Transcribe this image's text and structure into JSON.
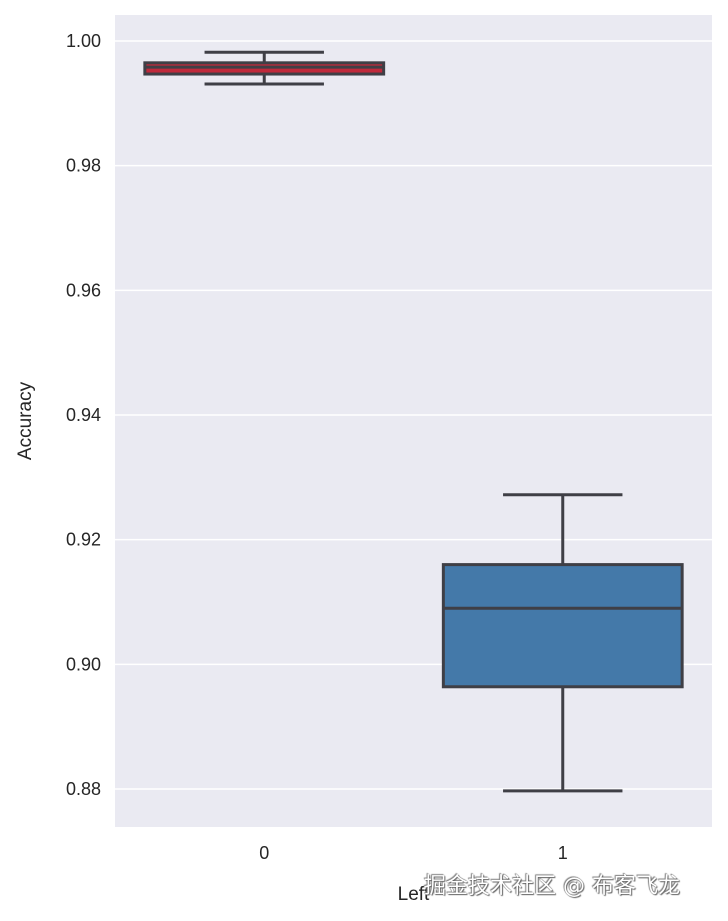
{
  "chart_data": {
    "type": "box",
    "title": "",
    "xlabel": "Left",
    "ylabel": "Accuracy",
    "categories": [
      "0",
      "1"
    ],
    "ylim": [
      0.874,
      1.0043
    ],
    "yticks": [
      0.88,
      0.9,
      0.92,
      0.94,
      0.96,
      0.98,
      1.0
    ],
    "ytick_labels": [
      "0.88",
      "0.90",
      "0.92",
      "0.94",
      "0.96",
      "0.98",
      "1.00"
    ],
    "grid": true,
    "background": "#eaeaf2",
    "boxes": [
      {
        "category": "0",
        "whisker_low": 0.9931,
        "q1": 0.9947,
        "median": 0.9958,
        "q3": 0.9965,
        "whisker_high": 0.9982,
        "color": "#c0293b"
      },
      {
        "category": "1",
        "whisker_low": 0.8797,
        "q1": 0.8964,
        "median": 0.909,
        "q3": 0.916,
        "whisker_high": 0.9272,
        "color": "#4479a9"
      }
    ]
  },
  "watermark": "掘金技术社区 @ 布客飞龙"
}
